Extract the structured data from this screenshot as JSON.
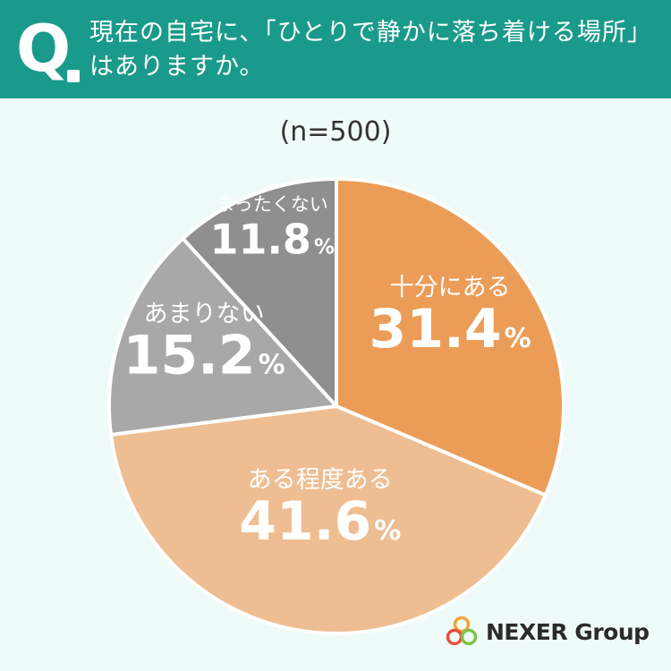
{
  "question": {
    "mark": "Q",
    "line1": "現在の自宅に、「ひとりで静かに落ち着ける場所」",
    "line2": "はありますか。"
  },
  "sample_size": "(n=500)",
  "brand": {
    "name": "NEXER Group"
  },
  "colors": {
    "header_bg": "#1a9a8b",
    "page_bg": "#effbf8"
  },
  "chart_data": {
    "type": "pie",
    "unit": "%",
    "start": "12 o'clock, clockwise",
    "slices": [
      {
        "label": "十分にある",
        "value": 31.4,
        "color": "#eb9d58"
      },
      {
        "label": "ある程度ある",
        "value": 41.6,
        "color": "#eebe92"
      },
      {
        "label": "あまりない",
        "value": 15.2,
        "color": "#a8a8a8"
      },
      {
        "label": "まったくない",
        "value": 11.8,
        "color": "#8f8f8f"
      }
    ]
  }
}
